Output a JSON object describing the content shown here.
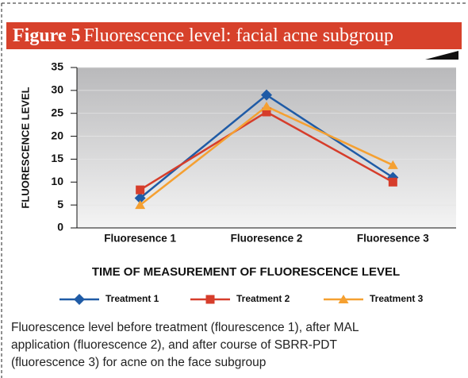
{
  "chart_data": {
    "type": "line",
    "figure_label": "Figure 5",
    "title": "Fluorescence level: facial acne subgroup",
    "y_label": "FLUORESCENCE LEVEL",
    "x_label": "TIME OF MEASUREMENT OF FLUORESCENCE LEVEL",
    "categories": [
      "Fluoresence 1",
      "Fluoresence 2",
      "Fluoresence 3"
    ],
    "series": [
      {
        "name": "Treatment 1",
        "color": "#1f5ba6",
        "marker": "diamond",
        "values": [
          6.5,
          29,
          11
        ]
      },
      {
        "name": "Treatment 2",
        "color": "#d63d2b",
        "marker": "square",
        "values": [
          8.3,
          25.3,
          10
        ]
      },
      {
        "name": "Treatment 3",
        "color": "#f5a031",
        "marker": "triangle",
        "values": [
          5,
          26.5,
          13.7
        ]
      }
    ],
    "ylim": [
      0,
      35
    ],
    "yticks": [
      0,
      5,
      10,
      15,
      20,
      25,
      30,
      35
    ],
    "grid": true,
    "caption": [
      "Fluorescence level before treatment (flourescence 1), after MAL",
      "application (fluorescence 2), and after course of SBRR-PDT",
      "(fluorescence 3) for acne on the face subgroup"
    ]
  }
}
